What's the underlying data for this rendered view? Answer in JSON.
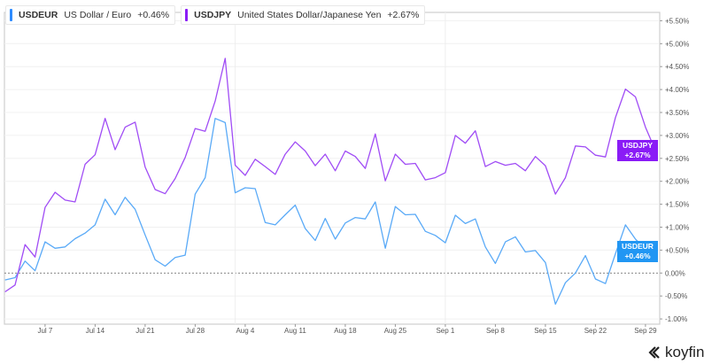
{
  "legend": [
    {
      "ticker": "USDEUR",
      "name": "US Dollar / Euro",
      "change": "+0.46%",
      "color": "#2f8cff"
    },
    {
      "ticker": "USDJPY",
      "name": "United States Dollar/Japanese Yen",
      "change": "+2.67%",
      "color": "#8a1cf6"
    }
  ],
  "badges": [
    {
      "ticker": "USDJPY",
      "change": "+2.67%",
      "color": "#8a1cf6"
    },
    {
      "ticker": "USDEUR",
      "change": "+0.46%",
      "color": "#2196f3"
    }
  ],
  "logo": {
    "text": "koyfin"
  },
  "chart_data": {
    "type": "line",
    "ylim": [
      -1.0,
      5.6
    ],
    "y_ticks": [
      -1.0,
      -0.5,
      0,
      0.5,
      1.0,
      1.5,
      2.0,
      2.5,
      3.0,
      3.5,
      4.0,
      4.5,
      5.0,
      5.5
    ],
    "y_tick_labels": [
      "-1.00%",
      "-0.50%",
      "0.00%",
      "+0.50%",
      "+1.00%",
      "+1.50%",
      "+2.00%",
      "+2.50%",
      "+3.00%",
      "+3.50%",
      "+4.00%",
      "+4.50%",
      "+5.00%",
      "+5.50%"
    ],
    "x_tick_labels": [
      "Jul 7",
      "Jul 14",
      "Jul 21",
      "Jul 28",
      "Aug 4",
      "Aug 11",
      "Aug 18",
      "Aug 25",
      "Sep 1",
      "Sep 8",
      "Sep 15",
      "Sep 22",
      "Sep 29"
    ],
    "x_tick_dates": [
      "Jul 7",
      "Jul 14",
      "Jul 21",
      "Jul 28",
      "Aug 4",
      "Aug 11",
      "Aug 18",
      "Aug 25",
      "Sep 1",
      "Sep 8",
      "Sep 15",
      "Sep 22",
      "Sep 29"
    ],
    "x": [
      "Jul 1",
      "Jul 2",
      "Jul 3",
      "Jul 4",
      "Jul 7",
      "Jul 8",
      "Jul 9",
      "Jul 10",
      "Jul 11",
      "Jul 14",
      "Jul 15",
      "Jul 16",
      "Jul 17",
      "Jul 18",
      "Jul 21",
      "Jul 22",
      "Jul 23",
      "Jul 24",
      "Jul 25",
      "Jul 28",
      "Jul 29",
      "Jul 30",
      "Jul 31",
      "Aug 1",
      "Aug 4",
      "Aug 5",
      "Aug 6",
      "Aug 7",
      "Aug 8",
      "Aug 11",
      "Aug 12",
      "Aug 13",
      "Aug 14",
      "Aug 15",
      "Aug 18",
      "Aug 19",
      "Aug 20",
      "Aug 21",
      "Aug 22",
      "Aug 25",
      "Aug 26",
      "Aug 27",
      "Aug 28",
      "Aug 29",
      "Sep 1",
      "Sep 2",
      "Sep 3",
      "Sep 4",
      "Sep 5",
      "Sep 8",
      "Sep 9",
      "Sep 10",
      "Sep 11",
      "Sep 12",
      "Sep 15",
      "Sep 16",
      "Sep 17",
      "Sep 18",
      "Sep 19",
      "Sep 22",
      "Sep 23",
      "Sep 24",
      "Sep 25",
      "Sep 26",
      "Sep 29",
      "Sep 30"
    ],
    "series": [
      {
        "name": "USDEUR",
        "color": "#5aaaf7",
        "values": [
          -0.15,
          -0.1,
          0.26,
          0.05,
          0.68,
          0.54,
          0.57,
          0.75,
          0.87,
          1.05,
          1.61,
          1.27,
          1.65,
          1.39,
          0.83,
          0.29,
          0.15,
          0.34,
          0.39,
          1.72,
          2.08,
          3.37,
          3.28,
          1.75,
          1.86,
          1.84,
          1.1,
          1.05,
          1.27,
          1.48,
          0.97,
          0.71,
          1.19,
          0.74,
          1.09,
          1.21,
          1.18,
          1.55,
          0.54,
          1.45,
          1.27,
          1.28,
          0.91,
          0.82,
          0.66,
          1.26,
          1.08,
          1.18,
          0.57,
          0.21,
          0.68,
          0.79,
          0.46,
          0.49,
          0.23,
          -0.68,
          -0.21,
          0.0,
          0.38,
          -0.13,
          -0.23,
          0.42,
          1.05,
          0.74,
          0.52,
          0.46
        ]
      },
      {
        "name": "USDJPY",
        "color": "#a04cf5",
        "values": [
          -0.41,
          -0.26,
          0.62,
          0.35,
          1.43,
          1.76,
          1.59,
          1.55,
          2.37,
          2.58,
          3.37,
          2.69,
          3.18,
          3.29,
          2.31,
          1.82,
          1.73,
          2.06,
          2.52,
          3.15,
          3.09,
          3.75,
          4.68,
          2.35,
          2.13,
          2.48,
          2.32,
          2.15,
          2.59,
          2.86,
          2.66,
          2.34,
          2.59,
          2.23,
          2.66,
          2.54,
          2.28,
          3.03,
          2.01,
          2.59,
          2.37,
          2.39,
          2.03,
          2.08,
          2.19,
          3.0,
          2.83,
          3.1,
          2.32,
          2.43,
          2.35,
          2.39,
          2.23,
          2.54,
          2.34,
          1.72,
          2.08,
          2.77,
          2.75,
          2.57,
          2.53,
          3.39,
          4.01,
          3.84,
          3.18,
          2.67
        ]
      }
    ],
    "grid": true,
    "legend_position": "top-left"
  }
}
